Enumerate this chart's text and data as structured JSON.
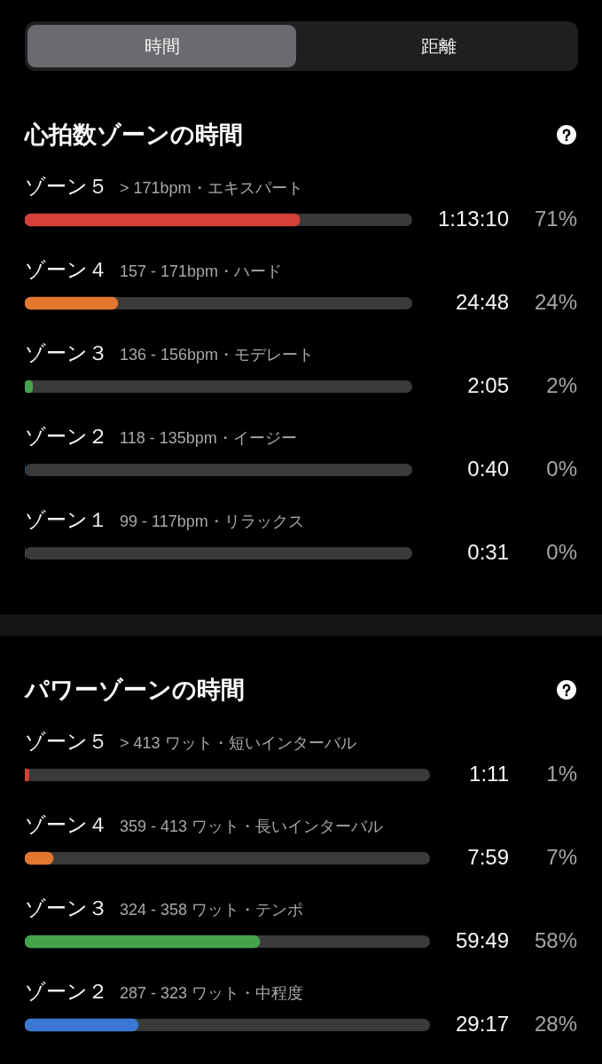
{
  "chart_data": [
    {
      "type": "other",
      "annotations": [
        "時間",
        "距離"
      ]
    },
    {
      "type": "bar",
      "orientation": "horizontal",
      "title": "心拍数ゾーンの時間",
      "categories": [
        "ゾーン５",
        "ゾーン４",
        "ゾーン３",
        "ゾーン２",
        "ゾーン１"
      ],
      "values": [
        71,
        24,
        2,
        0,
        0
      ],
      "colors": [
        "#d6403a",
        "#e3772f",
        "#46a34c",
        "#3b78d3",
        "#8e8e93"
      ],
      "xlim": [
        0,
        100
      ],
      "tick_labels": "y",
      "value_labels": [
        "71%",
        "24%",
        "2%",
        "0%",
        "0%"
      ],
      "annotations": [
        "> 171bpm・エキスパート",
        "1:13:10",
        "157 - 171bpm・ハード",
        "24:48",
        "136 - 156bpm・モデレート",
        "2:05",
        "118 - 135bpm・イージー",
        "0:40",
        "99 - 117bpm・リラックス",
        "0:31"
      ]
    },
    {
      "type": "bar",
      "orientation": "horizontal",
      "title": "パワーゾーンの時間",
      "categories": [
        "ゾーン５",
        "ゾーン４",
        "ゾーン３",
        "ゾーン２"
      ],
      "values": [
        1,
        7,
        58,
        28
      ],
      "colors": [
        "#d6403a",
        "#e3772f",
        "#46a34c",
        "#3b78d3"
      ],
      "xlim": [
        0,
        100
      ],
      "tick_labels": "y",
      "value_labels": [
        "1%",
        "7%",
        "58%",
        "28%"
      ],
      "annotations": [
        "> 413 ワット・短いインターバル",
        "1:11",
        "359 - 413 ワット・長いインターバル",
        "7:59",
        "324 - 358 ワット・テンポ",
        "59:49",
        "287 - 323 ワット・中程度",
        "29:17"
      ]
    }
  ]
}
